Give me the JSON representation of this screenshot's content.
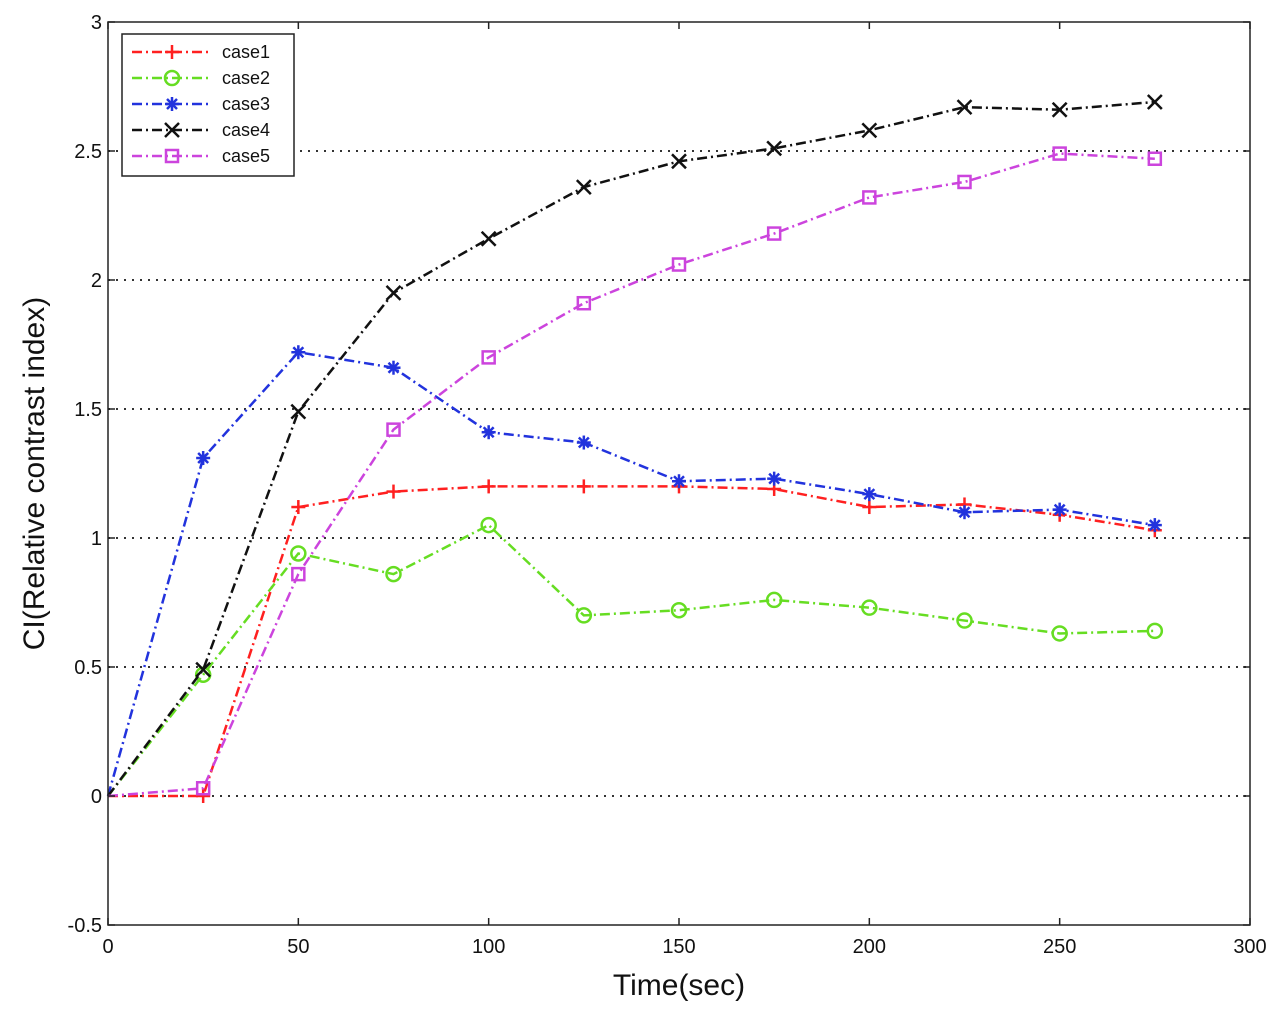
{
  "chart_data": {
    "type": "line",
    "title": "",
    "xlabel": "Time(sec)",
    "ylabel": "CI(Relative contrast index)",
    "xlim": [
      0,
      300
    ],
    "ylim": [
      -0.5,
      3
    ],
    "xticks": [
      0,
      50,
      100,
      150,
      200,
      250,
      300
    ],
    "yticks": [
      -0.5,
      0,
      0.5,
      1,
      1.5,
      2,
      2.5,
      3
    ],
    "x_tick_labels": [
      "0",
      "50",
      "100",
      "150",
      "200",
      "250",
      "300"
    ],
    "y_tick_labels": [
      "-0.5",
      "0",
      "0.5",
      "1",
      "1.5",
      "2",
      "2.5",
      "3"
    ],
    "grid": "horizontal dotted",
    "legend_position": "top-left",
    "x": [
      0,
      25,
      50,
      75,
      100,
      125,
      150,
      175,
      200,
      225,
      250,
      275
    ],
    "series": [
      {
        "name": "case1",
        "color": "#ff2020",
        "marker": "plus",
        "values": [
          0,
          0,
          1.12,
          1.18,
          1.2,
          1.2,
          1.2,
          1.19,
          1.12,
          1.13,
          1.09,
          1.03
        ]
      },
      {
        "name": "case2",
        "color": "#66dd22",
        "marker": "circle",
        "values": [
          0,
          0.47,
          0.94,
          0.86,
          1.05,
          0.7,
          0.72,
          0.76,
          0.73,
          0.68,
          0.63,
          0.64
        ]
      },
      {
        "name": "case3",
        "color": "#2233dd",
        "marker": "star",
        "values": [
          0,
          1.31,
          1.72,
          1.66,
          1.41,
          1.37,
          1.22,
          1.23,
          1.17,
          1.1,
          1.11,
          1.05
        ]
      },
      {
        "name": "case4",
        "color": "#111111",
        "marker": "x",
        "values": [
          0,
          0.49,
          1.49,
          1.95,
          2.16,
          2.36,
          2.46,
          2.51,
          2.58,
          2.67,
          2.66,
          2.69
        ]
      },
      {
        "name": "case5",
        "color": "#cc44dd",
        "marker": "square",
        "values": [
          0,
          0.03,
          0.86,
          1.42,
          1.7,
          1.91,
          2.06,
          2.18,
          2.32,
          2.38,
          2.49,
          2.47
        ]
      }
    ]
  }
}
